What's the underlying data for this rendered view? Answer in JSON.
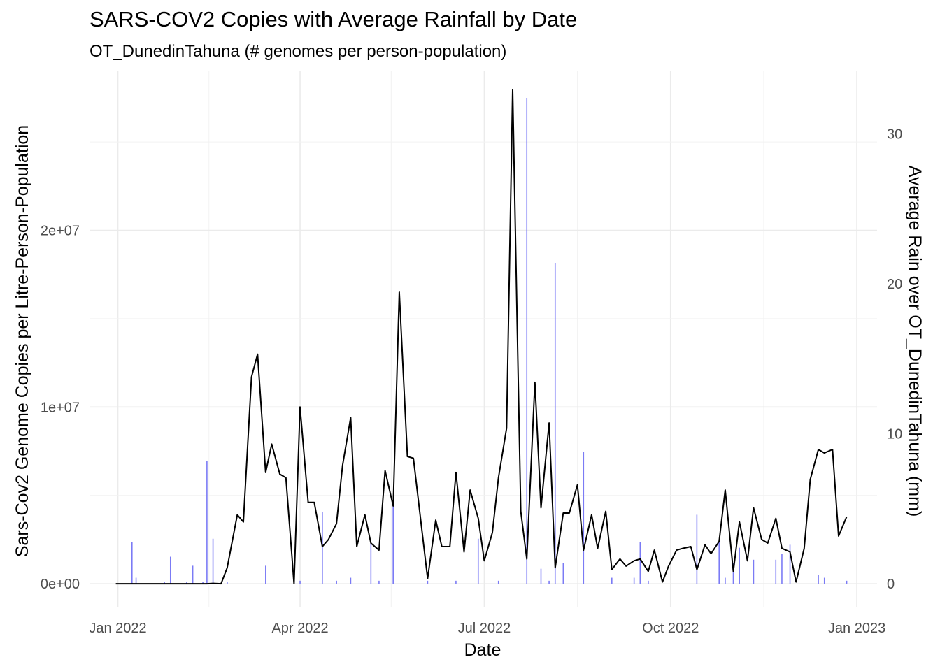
{
  "chart_data": {
    "type": "line",
    "title": "SARS-COV2 Copies with Average Rainfall by Date",
    "subtitle": "OT_DunedinTahuna (# genomes per person-population)",
    "xlabel": "Date",
    "ylabel": "Sars-Cov2 Genome Copies per Litre-Person-Population",
    "ylabel_right": "Average Rain over OT_DunedinTahuna (mm)",
    "x_ticks": [
      "Jan 2022",
      "Apr 2022",
      "Jul 2022",
      "Oct 2022",
      "Jan 2023"
    ],
    "y_ticks": [
      "0e+00",
      "1e+07",
      "2e+07"
    ],
    "y2_ticks": [
      "0",
      "10",
      "20",
      "30"
    ],
    "xlim": [
      "2021-12-18",
      "2023-01-11"
    ],
    "ylim": [
      -1300000,
      29000000
    ],
    "y2lim": [
      0,
      32.4
    ],
    "grid": true,
    "series": [
      {
        "kind": "line",
        "color": "#000000",
        "points": [
          [
            "2021-12-31",
            0
          ],
          [
            "2022-01-31",
            0
          ],
          [
            "2022-02-14",
            0
          ],
          [
            "2022-02-17",
            20000
          ],
          [
            "2022-02-21",
            0
          ],
          [
            "2022-02-24",
            900000
          ],
          [
            "2022-03-01",
            3900000
          ],
          [
            "2022-03-04",
            3500000
          ],
          [
            "2022-03-08",
            11700000
          ],
          [
            "2022-03-11",
            12990000
          ],
          [
            "2022-03-15",
            6300000
          ],
          [
            "2022-03-18",
            7900000
          ],
          [
            "2022-03-22",
            6200000
          ],
          [
            "2022-03-25",
            6000000
          ],
          [
            "2022-03-29",
            0
          ],
          [
            "2022-04-01",
            10000000
          ],
          [
            "2022-04-05",
            4600000
          ],
          [
            "2022-04-08",
            4600000
          ],
          [
            "2022-04-12",
            2100000
          ],
          [
            "2022-04-15",
            2500000
          ],
          [
            "2022-04-19",
            3400000
          ],
          [
            "2022-04-22",
            6700000
          ],
          [
            "2022-04-26",
            9400000
          ],
          [
            "2022-04-29",
            2100000
          ],
          [
            "2022-05-03",
            3900000
          ],
          [
            "2022-05-06",
            2300000
          ],
          [
            "2022-05-10",
            1900000
          ],
          [
            "2022-05-13",
            6400000
          ],
          [
            "2022-05-17",
            4400000
          ],
          [
            "2022-05-20",
            16500000
          ],
          [
            "2022-05-24",
            7200000
          ],
          [
            "2022-05-27",
            7100000
          ],
          [
            "2022-06-03",
            300000
          ],
          [
            "2022-06-07",
            3600000
          ],
          [
            "2022-06-10",
            2100000
          ],
          [
            "2022-06-14",
            2100000
          ],
          [
            "2022-06-17",
            6300000
          ],
          [
            "2022-06-21",
            1800000
          ],
          [
            "2022-06-24",
            5300000
          ],
          [
            "2022-06-28",
            3700000
          ],
          [
            "2022-07-01",
            1300000
          ],
          [
            "2022-07-05",
            2900000
          ],
          [
            "2022-07-08",
            6000000
          ],
          [
            "2022-07-12",
            8800000
          ],
          [
            "2022-07-15",
            27950000
          ],
          [
            "2022-07-19",
            4100000
          ],
          [
            "2022-07-22",
            1400000
          ],
          [
            "2022-07-26",
            11400000
          ],
          [
            "2022-07-29",
            4300000
          ],
          [
            "2022-08-02",
            9100000
          ],
          [
            "2022-08-05",
            900000
          ],
          [
            "2022-08-09",
            4000000
          ],
          [
            "2022-08-12",
            4000000
          ],
          [
            "2022-08-16",
            5600000
          ],
          [
            "2022-08-19",
            1900000
          ],
          [
            "2022-08-23",
            3900000
          ],
          [
            "2022-08-26",
            2000000
          ],
          [
            "2022-08-30",
            4100000
          ],
          [
            "2022-09-02",
            800000
          ],
          [
            "2022-09-06",
            1400000
          ],
          [
            "2022-09-09",
            1000000
          ],
          [
            "2022-09-13",
            1300000
          ],
          [
            "2022-09-16",
            1400000
          ],
          [
            "2022-09-20",
            700000
          ],
          [
            "2022-09-23",
            1900000
          ],
          [
            "2022-09-27",
            100000
          ],
          [
            "2022-09-30",
            1000000
          ],
          [
            "2022-10-04",
            1900000
          ],
          [
            "2022-10-07",
            2000000
          ],
          [
            "2022-10-11",
            2100000
          ],
          [
            "2022-10-14",
            800000
          ],
          [
            "2022-10-18",
            2200000
          ],
          [
            "2022-10-21",
            1700000
          ],
          [
            "2022-10-25",
            2400000
          ],
          [
            "2022-10-28",
            5300000
          ],
          [
            "2022-11-01",
            700000
          ],
          [
            "2022-11-04",
            3500000
          ],
          [
            "2022-11-08",
            1300000
          ],
          [
            "2022-11-11",
            4300000
          ],
          [
            "2022-11-15",
            2500000
          ],
          [
            "2022-11-18",
            2300000
          ],
          [
            "2022-11-22",
            3700000
          ],
          [
            "2022-11-25",
            2000000
          ],
          [
            "2022-11-29",
            1800000
          ],
          [
            "2022-12-02",
            100000
          ],
          [
            "2022-12-06",
            2000000
          ],
          [
            "2022-12-09",
            5900000
          ],
          [
            "2022-12-13",
            7600000
          ],
          [
            "2022-12-16",
            7400000
          ],
          [
            "2022-12-20",
            7600000
          ],
          [
            "2022-12-23",
            2700000
          ],
          [
            "2022-12-27",
            3800000
          ]
        ]
      },
      {
        "kind": "bar",
        "axis": "right",
        "color": "#7b7bf5",
        "points": [
          [
            "2022-01-08",
            2.8
          ],
          [
            "2022-01-10",
            0.4
          ],
          [
            "2022-01-24",
            0.1
          ],
          [
            "2022-01-27",
            1.8
          ],
          [
            "2022-02-04",
            0.1
          ],
          [
            "2022-02-07",
            1.2
          ],
          [
            "2022-02-12",
            0.1
          ],
          [
            "2022-02-14",
            8.2
          ],
          [
            "2022-02-17",
            3.0
          ],
          [
            "2022-02-24",
            0.1
          ],
          [
            "2022-03-15",
            1.2
          ],
          [
            "2022-03-29",
            0.1
          ],
          [
            "2022-04-01",
            0.2
          ],
          [
            "2022-04-12",
            4.8
          ],
          [
            "2022-04-19",
            0.2
          ],
          [
            "2022-04-26",
            0.4
          ],
          [
            "2022-05-06",
            2.8
          ],
          [
            "2022-05-10",
            0.2
          ],
          [
            "2022-05-17",
            5.2
          ],
          [
            "2022-06-03",
            0.2
          ],
          [
            "2022-06-17",
            0.2
          ],
          [
            "2022-06-28",
            3.0
          ],
          [
            "2022-07-08",
            0.2
          ],
          [
            "2022-07-22",
            32.4
          ],
          [
            "2022-07-29",
            1.0
          ],
          [
            "2022-08-02",
            0.2
          ],
          [
            "2022-08-05",
            21.4
          ],
          [
            "2022-08-09",
            1.4
          ],
          [
            "2022-08-19",
            8.8
          ],
          [
            "2022-09-02",
            0.4
          ],
          [
            "2022-09-13",
            0.4
          ],
          [
            "2022-09-16",
            2.8
          ],
          [
            "2022-09-20",
            0.2
          ],
          [
            "2022-10-14",
            4.6
          ],
          [
            "2022-10-25",
            2.8
          ],
          [
            "2022-10-28",
            0.4
          ],
          [
            "2022-11-01",
            1.4
          ],
          [
            "2022-11-04",
            2.4
          ],
          [
            "2022-11-11",
            1.6
          ],
          [
            "2022-11-22",
            1.6
          ],
          [
            "2022-11-25",
            2.0
          ],
          [
            "2022-11-29",
            2.6
          ],
          [
            "2022-12-13",
            0.6
          ],
          [
            "2022-12-16",
            0.4
          ],
          [
            "2022-12-27",
            0.2
          ]
        ]
      }
    ]
  }
}
